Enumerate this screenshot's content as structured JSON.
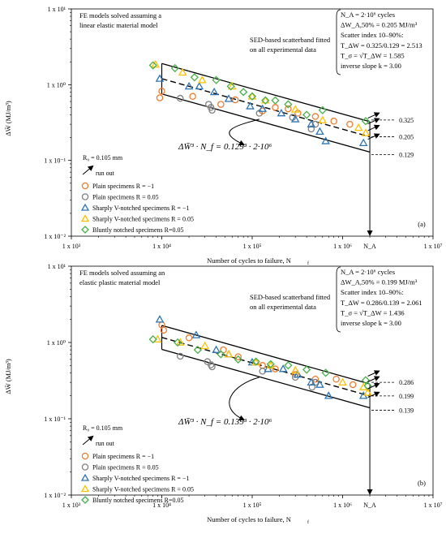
{
  "chart_data": [
    {
      "type": "scatter",
      "panel_label": "(a)",
      "xlabel": "Number of cycles to failure, N",
      "xlabel_sub": "f",
      "ylabel": "ΔW̄  (MJ/m³)",
      "xscale": "log",
      "yscale": "log",
      "xlim": [
        1000,
        10000000
      ],
      "ylim": [
        0.01,
        10
      ],
      "x_ticks": [
        "1 x 10³",
        "1 x 10⁴",
        "1 x 10⁵",
        "1 x 10⁶",
        "1 x 10⁷"
      ],
      "y_ticks": [
        "1 x 10¹",
        "1 x 10⁰",
        "1 x 10⁻¹",
        "1 x 10⁻²"
      ],
      "model_note": [
        "FE models solved assuming a",
        "linear elastic material model"
      ],
      "band_note": [
        "SED-based scatterband fitted",
        "on all experimental data"
      ],
      "info_box": [
        "N_A = 2·10⁶ cycles",
        "ΔW_A,50% = 0.205 MJ/m³",
        "Scatter index 10–90%:",
        "T_ΔW = 0.325/0.129 = 2.513",
        "T_σ = √T_ΔW = 1.585",
        "inverse slope k = 3.00"
      ],
      "equation": "ΔW̄³ · N_f = 0.129³ · 2·10⁶",
      "na_label": "N_A",
      "band_values": [
        0.325,
        0.205,
        0.129
      ],
      "band_labels": [
        "0.325",
        "0.205",
        "0.129"
      ],
      "band_x": [
        10000,
        2000000
      ],
      "radius_note": "R₀ = 0.105 mm",
      "runout_note": "run out",
      "legend": [
        "Plain specimens R = −1",
        "Plain specimens R = 0.05",
        "Sharply V-notched specimens R = −1",
        "Sharply V-notched specimens R = 0.05",
        "Bluntly notched specimens R=0.05"
      ],
      "series": [
        {
          "name": "Plain specimens R = −1",
          "marker": "circle",
          "color": "#ED7D31",
          "points": [
            [
              9500,
              0.67
            ],
            [
              10000,
              0.82
            ],
            [
              22000,
              0.7
            ],
            [
              45000,
              0.55
            ],
            [
              65000,
              0.63
            ],
            [
              130000,
              0.45
            ],
            [
              180000,
              0.5
            ],
            [
              250000,
              0.48
            ],
            [
              320000,
              0.42
            ],
            [
              500000,
              0.38
            ],
            [
              800000,
              0.33
            ],
            [
              1200000,
              0.3
            ]
          ]
        },
        {
          "name": "Plain specimens R = 0.05",
          "marker": "circle",
          "color": "#808080",
          "points": [
            [
              16000,
              0.66
            ],
            [
              33000,
              0.55
            ],
            [
              35000,
              0.5
            ],
            [
              36000,
              0.46
            ],
            [
              120000,
              0.42
            ],
            [
              280000,
              0.37
            ],
            [
              450000,
              0.26
            ],
            [
              500000,
              0.3
            ]
          ]
        },
        {
          "name": "Sharply V-notched specimens R = −1",
          "marker": "triangle",
          "color": "#2E75B6",
          "points": [
            [
              9500,
              1.2
            ],
            [
              20000,
              0.95
            ],
            [
              26000,
              0.95
            ],
            [
              38000,
              0.8
            ],
            [
              55000,
              0.65
            ],
            [
              95000,
              0.52
            ],
            [
              130000,
              0.48
            ],
            [
              210000,
              0.42
            ],
            [
              300000,
              0.35
            ],
            [
              450000,
              0.3
            ],
            [
              560000,
              0.24
            ],
            [
              650000,
              0.18
            ],
            [
              1700000,
              0.17
            ]
          ]
        },
        {
          "name": "Sharply V-notched specimens R = 0.05",
          "marker": "triangle",
          "color": "#FFC000",
          "points": [
            [
              8500,
              1.85
            ],
            [
              17000,
              1.45
            ],
            [
              28000,
              1.15
            ],
            [
              60000,
              0.95
            ],
            [
              100000,
              0.7
            ],
            [
              140000,
              0.62
            ],
            [
              300000,
              0.47
            ],
            [
              600000,
              0.34
            ],
            [
              1500000,
              0.27
            ],
            [
              1800000,
              0.23
            ]
          ]
        },
        {
          "name": "Bluntly notched specimens R=0.05",
          "marker": "diamond",
          "color": "#4AAE4A",
          "points": [
            [
              8000,
              1.8
            ],
            [
              14000,
              1.65
            ],
            [
              23000,
              1.25
            ],
            [
              40000,
              1.15
            ],
            [
              58000,
              0.95
            ],
            [
              80000,
              0.8
            ],
            [
              100000,
              0.7
            ],
            [
              140000,
              0.62
            ],
            [
              180000,
              0.62
            ],
            [
              250000,
              0.55
            ],
            [
              400000,
              0.4
            ],
            [
              600000,
              0.46
            ],
            [
              1800000,
              0.33
            ]
          ]
        }
      ]
    },
    {
      "type": "scatter",
      "panel_label": "(b)",
      "xlabel": "Number of cycles to failure, N",
      "xlabel_sub": "f",
      "ylabel": "ΔW̄  (MJ/m³)",
      "xscale": "log",
      "yscale": "log",
      "xlim": [
        1000,
        10000000
      ],
      "ylim": [
        0.01,
        10
      ],
      "x_ticks": [
        "1 x 10³",
        "1 x 10⁴",
        "1 x 10⁵",
        "1 x 10⁶",
        "1 x 10⁷"
      ],
      "y_ticks": [
        "1 x 10¹",
        "1 x 10⁰",
        "1 x 10⁻¹",
        "1 x 10⁻²"
      ],
      "model_note": [
        "FE models solved assuming an",
        "elastic plastic material model"
      ],
      "band_note": [
        "SED-based scatterband fitted",
        "on all experimental data"
      ],
      "info_box": [
        "N_A = 2·10⁶ cycles",
        "ΔW_A,50% = 0.199 MJ/m³",
        "Scatter index 10–90%:",
        "T_ΔW = 0.286/0.139 = 2.061",
        "T_σ = √T_ΔW = 1.436",
        "inverse slope k = 3.00"
      ],
      "equation": "ΔW̄³ · N_f = 0.139³ · 2·10⁶",
      "na_label": "N_A",
      "band_values": [
        0.286,
        0.199,
        0.139
      ],
      "band_labels": [
        "0.286",
        "0.199",
        "0.139"
      ],
      "band_x": [
        10000,
        2000000
      ],
      "radius_note": "R₀ = 0.105 mm",
      "runout_note": "run out",
      "legend": [
        "Plain specimens R = −1",
        "Plain specimens R = 0.05",
        "Sharply V-notched specimens R = −1",
        "Sharply V-notched specimens R = 0.05",
        "Bluntly notched specimens R=0.05"
      ],
      "series": [
        {
          "name": "Plain specimens R = −1",
          "marker": "circle",
          "color": "#ED7D31",
          "points": [
            [
              10000,
              1.7
            ],
            [
              10500,
              1.45
            ],
            [
              20000,
              1.15
            ],
            [
              48000,
              0.8
            ],
            [
              70000,
              0.65
            ],
            [
              130000,
              0.5
            ],
            [
              180000,
              0.45
            ],
            [
              300000,
              0.38
            ],
            [
              500000,
              0.33
            ],
            [
              850000,
              0.33
            ],
            [
              1300000,
              0.28
            ]
          ]
        },
        {
          "name": "Plain specimens R = 0.05",
          "marker": "circle",
          "color": "#808080",
          "points": [
            [
              16000,
              0.66
            ],
            [
              32000,
              0.56
            ],
            [
              35000,
              0.51
            ],
            [
              36000,
              0.48
            ],
            [
              130000,
              0.42
            ],
            [
              300000,
              0.35
            ],
            [
              460000,
              0.26
            ],
            [
              500000,
              0.3
            ]
          ]
        },
        {
          "name": "Sharply V-notched specimens R = −1",
          "marker": "triangle",
          "color": "#2E75B6",
          "points": [
            [
              9500,
              2.0
            ],
            [
              24000,
              1.25
            ],
            [
              40000,
              0.8
            ],
            [
              55000,
              0.7
            ],
            [
              100000,
              0.55
            ],
            [
              150000,
              0.45
            ],
            [
              220000,
              0.45
            ],
            [
              320000,
              0.38
            ],
            [
              450000,
              0.3
            ],
            [
              560000,
              0.28
            ],
            [
              700000,
              0.2
            ],
            [
              1700000,
              0.2
            ]
          ]
        },
        {
          "name": "Sharply V-notched specimens R = 0.05",
          "marker": "triangle",
          "color": "#FFC000",
          "points": [
            [
              9000,
              1.1
            ],
            [
              16000,
              1.0
            ],
            [
              30000,
              0.9
            ],
            [
              55000,
              0.7
            ],
            [
              110000,
              0.55
            ],
            [
              160000,
              0.5
            ],
            [
              300000,
              0.43
            ],
            [
              1000000,
              0.3
            ],
            [
              1700000,
              0.26
            ],
            [
              1900000,
              0.22
            ]
          ]
        },
        {
          "name": "Bluntly notched specimens R=0.05",
          "marker": "diamond",
          "color": "#4AAE4A",
          "points": [
            [
              8000,
              1.1
            ],
            [
              15000,
              1.0
            ],
            [
              25000,
              0.8
            ],
            [
              45000,
              0.7
            ],
            [
              70000,
              0.6
            ],
            [
              110000,
              0.56
            ],
            [
              160000,
              0.52
            ],
            [
              250000,
              0.5
            ],
            [
              400000,
              0.44
            ],
            [
              650000,
              0.4
            ],
            [
              1800000,
              0.32
            ],
            [
              1900000,
              0.27
            ]
          ]
        }
      ]
    }
  ]
}
